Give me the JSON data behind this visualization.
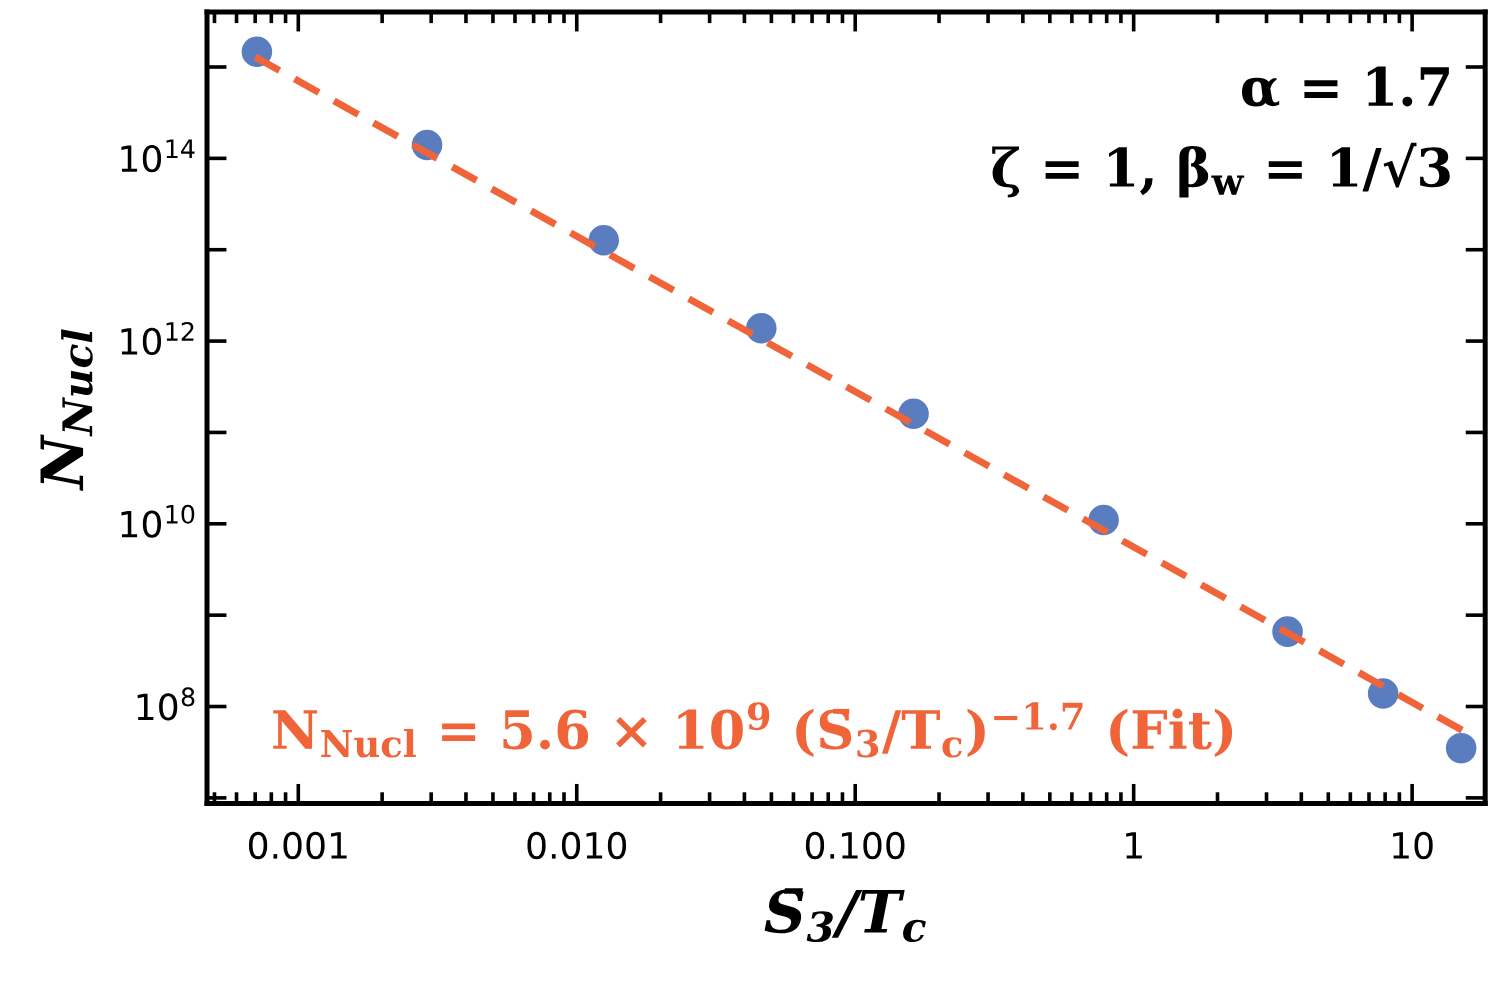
{
  "chart_data": {
    "type": "scatter",
    "xlabel": "S̄$_{3}$/T$_{c}$",
    "ylabel": "N$_{Nucl}$",
    "log": "xy",
    "grid": false,
    "legend": false,
    "xlim": [
      0.00047,
      18.3
    ],
    "ylim": [
      8700000.0,
      4000000000000000.0
    ],
    "xticks": [
      {
        "value": 0.001,
        "label": "0.001"
      },
      {
        "value": 0.01,
        "label": "0.010"
      },
      {
        "value": 0.1,
        "label": "0.100"
      },
      {
        "value": 1,
        "label": "1"
      },
      {
        "value": 10,
        "label": "10"
      }
    ],
    "yticks": [
      {
        "value": 10000000.0,
        "label": null
      },
      {
        "value": 100000000.0,
        "label": "10$^{8}$"
      },
      {
        "value": 1000000000.0,
        "label": null
      },
      {
        "value": 10000000000.0,
        "label": "10$^{10}$"
      },
      {
        "value": 100000000000.0,
        "label": null
      },
      {
        "value": 1000000000000.0,
        "label": "10$^{12}$"
      },
      {
        "value": 10000000000000.0,
        "label": null
      },
      {
        "value": 100000000000000.0,
        "label": "10$^{14}$"
      },
      {
        "value": 1000000000000000.0,
        "label": null
      }
    ],
    "series": [
      {
        "color": "#5a7dbf",
        "marker": "circle",
        "x": [
          0.00071,
          0.0029,
          0.0125,
          0.046,
          0.162,
          0.78,
          3.57,
          7.87,
          15.0
        ],
        "values": [
          1470000000000000.0,
          140000000000000.0,
          12700000000000.0,
          1380000000000.0,
          160000000000.0,
          11000000000.0,
          660000000.0,
          139000000.0,
          35000000.0
        ]
      },
      {
        "type": "line",
        "color": "#f0643a",
        "line_style": "dashed",
        "marker": "none",
        "x": [
          0.0007,
          16
        ],
        "values": [
          1290000000000000.0,
          50000000.0
        ]
      }
    ],
    "annotations": [
      "α = 1.7",
      "ζ = 1, β$_{w}$ = 1/√3",
      "N$_{Nucl}$ = 5.6 × 10$^{9}$ (S̄$_{3}$/T$_{c}$)$^{−1.7}$ (Fit)"
    ]
  }
}
